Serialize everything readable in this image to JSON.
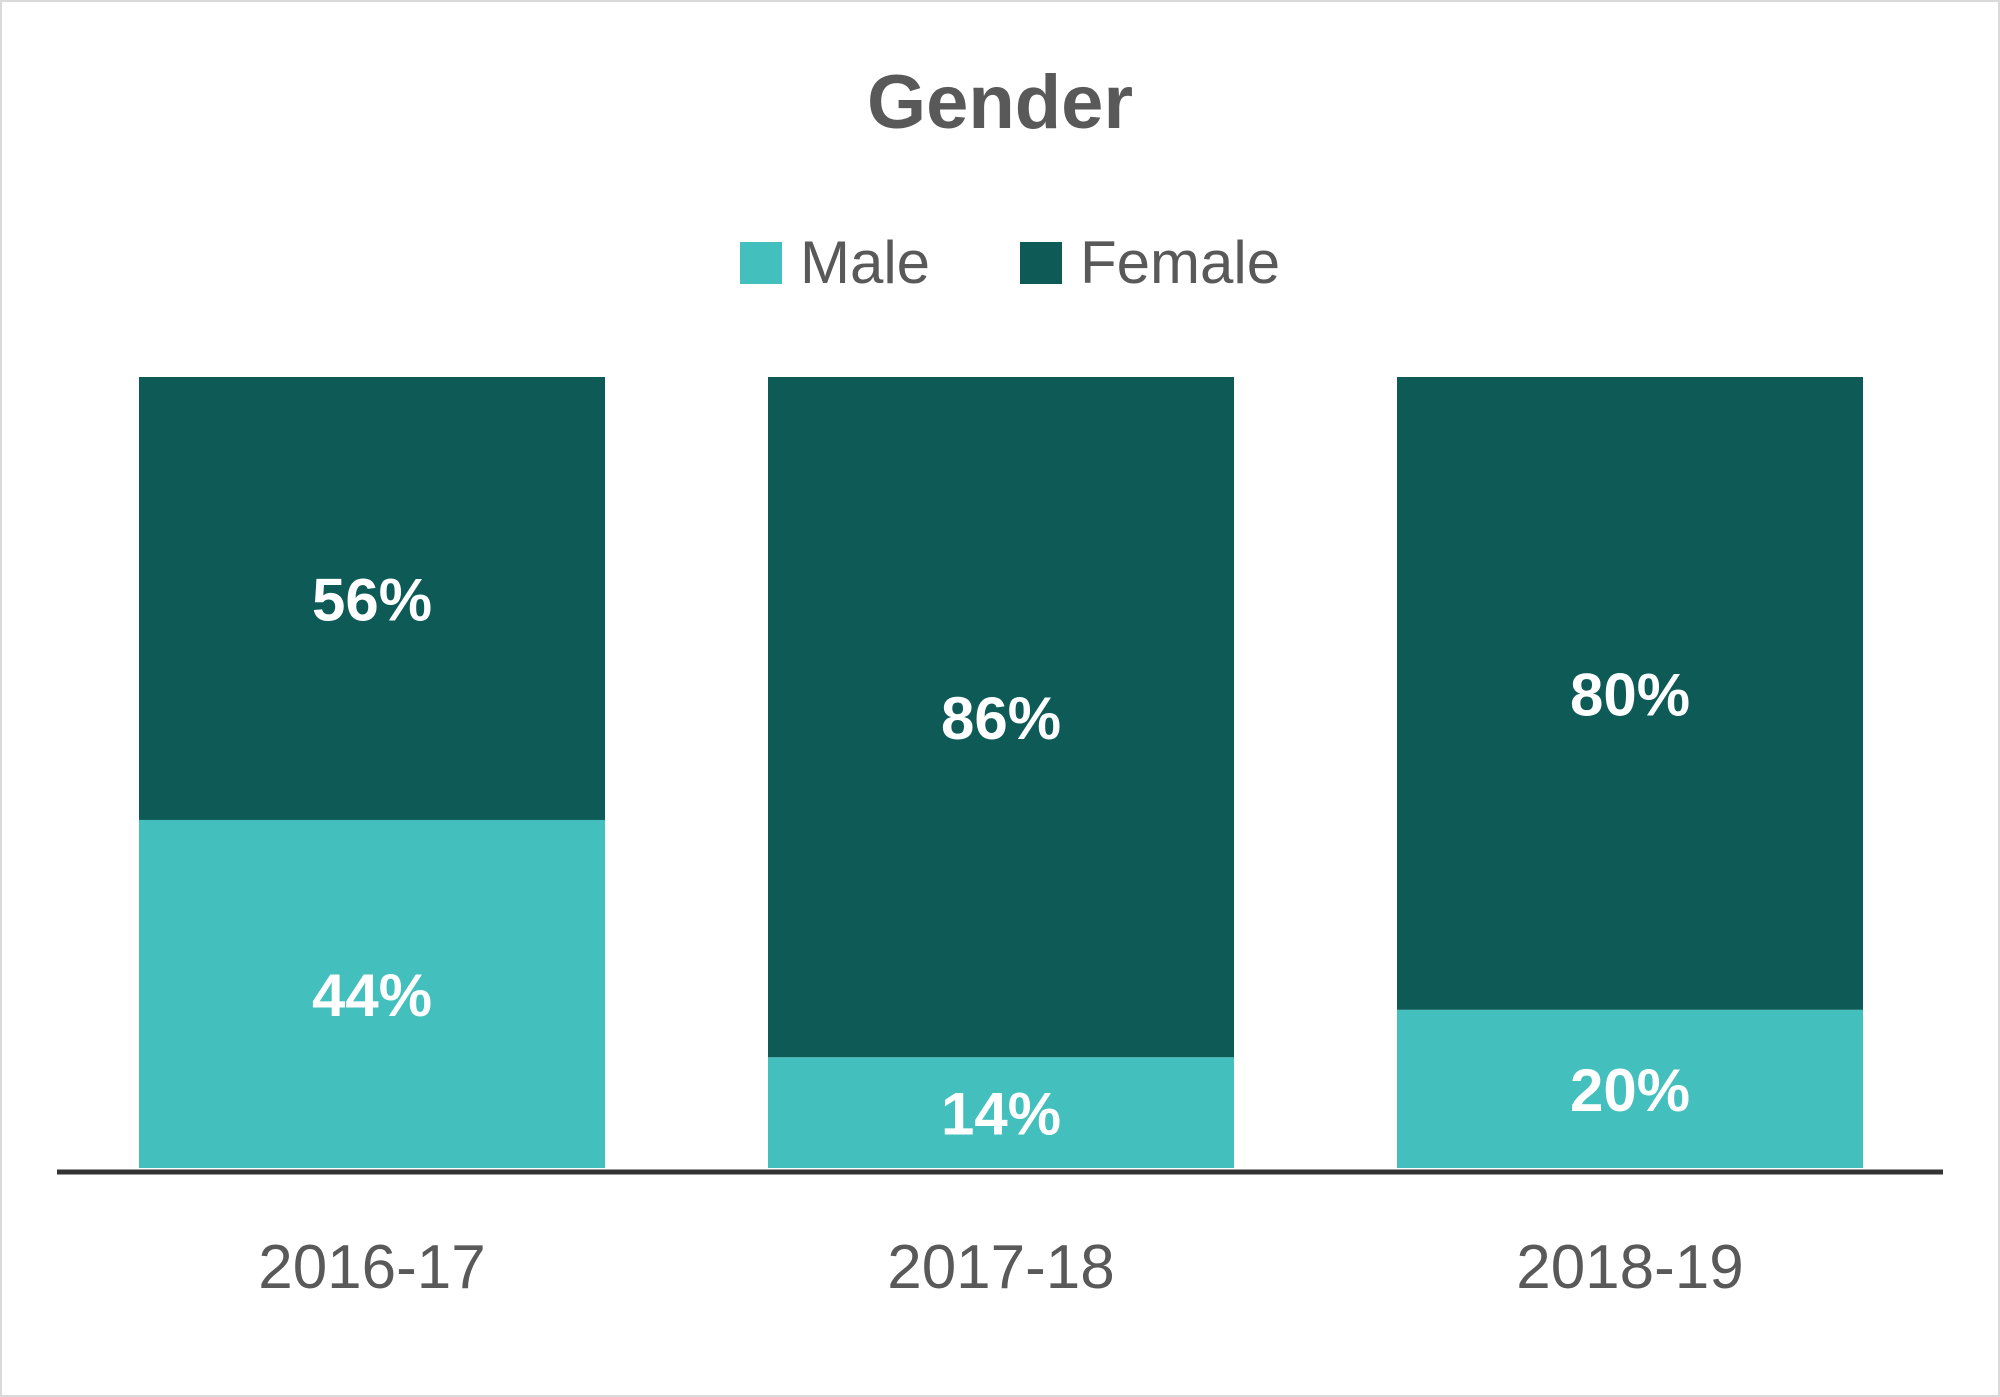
{
  "chart_data": {
    "type": "bar",
    "stacked": true,
    "title": "Gender",
    "categories": [
      "2016-17",
      "2017-18",
      "2018-19"
    ],
    "series": [
      {
        "name": "Male",
        "values": [
          44,
          14,
          20
        ],
        "color": "#43bfbd",
        "labels": [
          "44%",
          "14%",
          "20%"
        ]
      },
      {
        "name": "Female",
        "values": [
          56,
          86,
          80
        ],
        "color": "#0e5a57",
        "labels": [
          "56%",
          "86%",
          "80%"
        ]
      }
    ],
    "ylim": [
      0,
      100
    ],
    "legend": "top-center",
    "grid": false,
    "axis_color": "#333333"
  }
}
